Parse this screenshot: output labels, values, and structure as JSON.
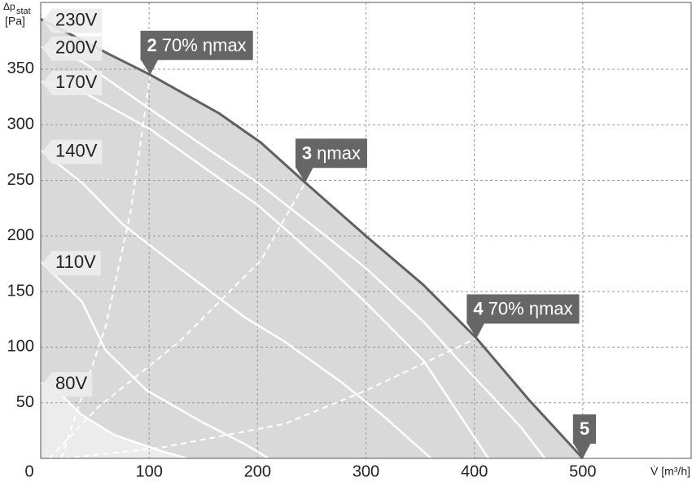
{
  "chart_data": {
    "type": "line",
    "ylabel": {
      "symbol": "Δp",
      "subscript": "stat",
      "unit": "[Pa]"
    },
    "xlabel": "V̇ [m³/h]",
    "xlim": [
      0,
      600
    ],
    "ylim": [
      0,
      410
    ],
    "xticks": [
      0,
      100,
      200,
      300,
      400,
      500
    ],
    "yticks": [
      50,
      100,
      150,
      200,
      250,
      300,
      350
    ],
    "grid": true,
    "series": [
      {
        "name": "230V",
        "color": "#606060",
        "fill": "#d9d9d9",
        "x": [
          0,
          30,
          64,
          101,
          165,
          203,
          244,
          300,
          353,
          402,
          450,
          500
        ],
        "y": [
          395,
          380,
          363,
          345,
          310,
          284,
          248,
          200,
          156,
          108,
          53,
          0
        ]
      },
      {
        "name": "200V",
        "color": "#ffffff",
        "x": [
          0,
          38,
          101,
          150,
          200,
          263,
          300,
          353,
          398,
          443,
          465
        ],
        "y": [
          370,
          357,
          314,
          281,
          248,
          200,
          171,
          123,
          75,
          28,
          0
        ]
      },
      {
        "name": "170V",
        "color": "#ffffff",
        "x": [
          0,
          38,
          101,
          150,
          200,
          263,
          300,
          353,
          413
        ],
        "y": [
          339,
          330,
          296,
          262,
          228,
          174,
          140,
          88,
          0
        ]
      },
      {
        "name": "140V",
        "color": "#ffffff",
        "x": [
          0,
          38,
          75,
          128,
          188,
          225,
          278,
          315,
          360
        ],
        "y": [
          277,
          248,
          211,
          171,
          127,
          105,
          68,
          39,
          0
        ]
      },
      {
        "name": "110V",
        "color": "#ffffff",
        "x": [
          0,
          38,
          60,
          98,
          150,
          188,
          210
        ],
        "y": [
          177,
          141,
          97,
          61,
          32,
          13,
          0
        ]
      },
      {
        "name": "80V",
        "color": "#ffffff",
        "fill": "#ececec",
        "x": [
          0,
          15,
          38,
          68,
          113,
          135
        ],
        "y": [
          68,
          61,
          39,
          21,
          6,
          0
        ]
      }
    ],
    "efficiency_lines": [
      {
        "x": [
          19,
          60,
          83,
          101
        ],
        "y": [
          0,
          119,
          222,
          345
        ]
      },
      {
        "x": [
          8,
          53,
          128,
          203,
          244
        ],
        "y": [
          0,
          46,
          105,
          178,
          248
        ]
      },
      {
        "x": [
          22,
          113,
          225,
          300,
          402
        ],
        "y": [
          0,
          10,
          31,
          61,
          108
        ]
      }
    ],
    "annotations": [
      {
        "number": "2",
        "text": "70% ηmax",
        "x": 101,
        "y": 345
      },
      {
        "number": "3",
        "text": "ηmax",
        "x": 244,
        "y": 248
      },
      {
        "number": "4",
        "text": "70% ηmax",
        "x": 402,
        "y": 108
      },
      {
        "number": "5",
        "x": 500,
        "y": 0
      }
    ]
  }
}
